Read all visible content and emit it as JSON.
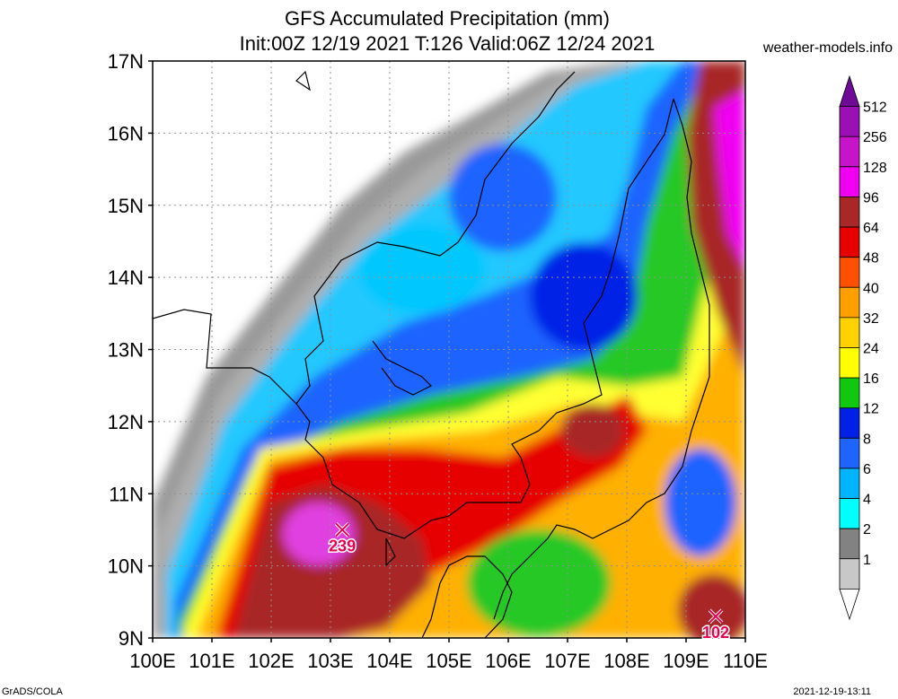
{
  "header": {
    "title": "GFS Accumulated Precipitation (mm)",
    "subtitle": "Init:00Z 12/19 2021 T:126 Valid:06Z 12/24 2021",
    "site": "weather-models.info"
  },
  "axes": {
    "lat_labels": [
      "17N",
      "16N",
      "15N",
      "14N",
      "13N",
      "12N",
      "11N",
      "10N",
      "9N"
    ],
    "lon_labels": [
      "100E",
      "101E",
      "102E",
      "103E",
      "104E",
      "105E",
      "106E",
      "107E",
      "108E",
      "109E",
      "110E"
    ]
  },
  "colorbar": {
    "labels": [
      "512",
      "256",
      "128",
      "96",
      "64",
      "48",
      "40",
      "32",
      "24",
      "16",
      "12",
      "8",
      "6",
      "4",
      "2",
      "1"
    ],
    "colors": [
      "#6e0a96",
      "#9a10b4",
      "#c814c8",
      "#f000f0",
      "#a82828",
      "#e60000",
      "#ff5000",
      "#ffa000",
      "#ffd200",
      "#ffff00",
      "#10c810",
      "#0020e6",
      "#1e64ff",
      "#00b4ff",
      "#00ffff",
      "#828282",
      "#c8c8c8",
      "#ffffff"
    ]
  },
  "markers": [
    {
      "label": "239",
      "lon": 103.2,
      "lat": 10.5,
      "value": 239
    },
    {
      "label": "102",
      "lon": 109.5,
      "lat": 9.3,
      "value": 102
    }
  ],
  "footer": {
    "credit": "GrADS/COLA",
    "stamp": "2021-12-19-13:11"
  }
}
